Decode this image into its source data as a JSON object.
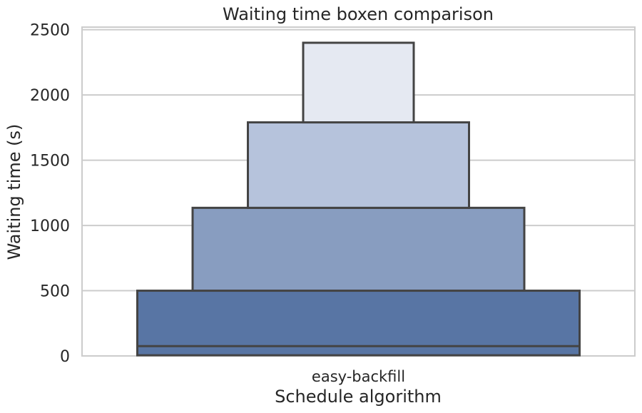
{
  "chart_data": {
    "type": "boxen",
    "title": "Waiting time boxen comparison",
    "xlabel": "Schedule algorithm",
    "ylabel": "Waiting time (s)",
    "categories": [
      "easy-backfill"
    ],
    "ylim": [
      0,
      2520
    ],
    "yticks": [
      0,
      500,
      1000,
      1500,
      2000,
      2500
    ],
    "grid": true,
    "legend": "none",
    "series": [
      {
        "category": "easy-backfill",
        "median": 75,
        "boxes": [
          {
            "low": 5,
            "high": 500,
            "color": "#5875a4"
          },
          {
            "low": 500,
            "high": 1135,
            "color": "#889dc0"
          },
          {
            "low": 1135,
            "high": 1790,
            "color": "#b6c3dc"
          },
          {
            "low": 1790,
            "high": 2400,
            "color": "#e5e9f2"
          }
        ]
      }
    ],
    "colors": {
      "edge": "#444444",
      "grid": "#cccccc",
      "frame": "#cccccc"
    }
  }
}
